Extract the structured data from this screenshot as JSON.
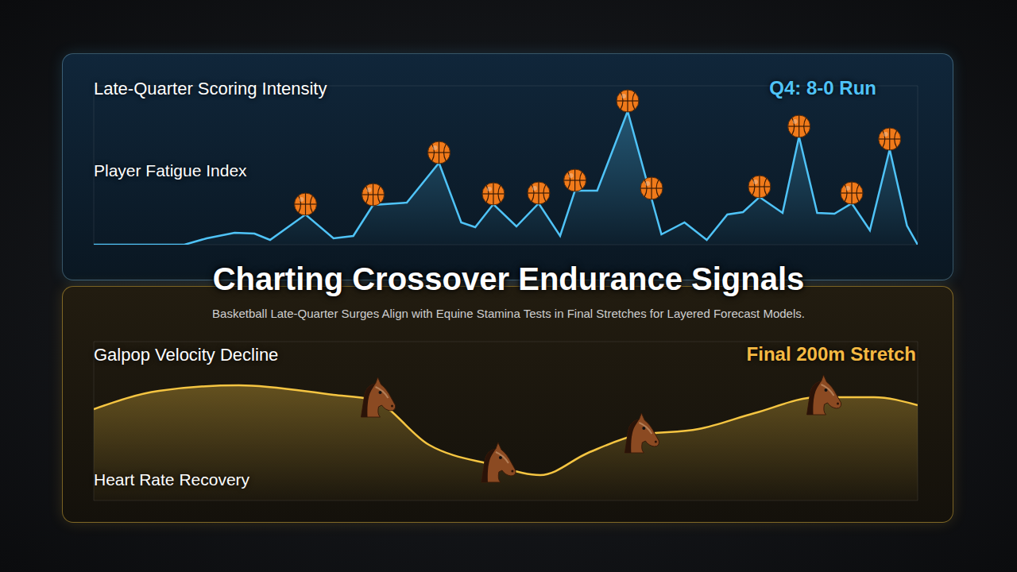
{
  "title": "Charting Crossover Endurance Signals",
  "subtitle": "Basketball Late-Quarter Surges Align with Equine Stamina Tests in Final Stretches for Layered Forecast Models.",
  "chart_data": [
    {
      "type": "area",
      "title": "Late-Quarter Scoring Intensity",
      "ylabel": "Player Fatigue Index",
      "annotation": "Q4: 8-0 Run",
      "x": [
        0,
        11,
        13.7,
        17.1,
        19.5,
        21.4,
        25.7,
        29.1,
        31.5,
        33.9,
        38,
        41.9,
        44.6,
        46.3,
        48.5,
        51.3,
        54,
        56.6,
        58.4,
        61.1,
        64.8,
        67.7,
        68.9,
        71.7,
        74.4,
        76.9,
        78.8,
        80.8,
        83.6,
        85.6,
        87.8,
        89.9,
        92,
        94.2,
        96.6,
        98.7,
        100
      ],
      "series": [
        {
          "type": "area",
          "color": "#4fc3f7",
          "line_style": "straight",
          "values": [
            0,
            0,
            0.4,
            0.75,
            0.7,
            0.3,
            1.9,
            0.4,
            0.55,
            2.5,
            2.65,
            5.15,
            1.4,
            1.1,
            2.55,
            1.15,
            2.6,
            0.55,
            3.4,
            3.4,
            8.4,
            2.9,
            0.65,
            1.4,
            0.3,
            1.9,
            2.05,
            3.0,
            2.0,
            6.8,
            2.0,
            1.95,
            2.6,
            0.9,
            6.0,
            1.2,
            0
          ]
        },
        {
          "type": "scatter",
          "marker": "basketball",
          "color": "#f07a1a",
          "values": [
            null,
            null,
            null,
            null,
            null,
            null,
            1.9,
            null,
            null,
            2.5,
            null,
            5.15,
            null,
            null,
            2.55,
            null,
            2.6,
            null,
            3.4,
            null,
            8.4,
            2.9,
            null,
            null,
            null,
            null,
            null,
            3.0,
            null,
            6.8,
            null,
            null,
            2.6,
            null,
            6.0,
            null,
            null
          ]
        }
      ],
      "xlim": [
        0,
        100
      ],
      "xticks": [
        0,
        10,
        20,
        30,
        40,
        50,
        60,
        70,
        80,
        90,
        100
      ],
      "ylim": [
        0,
        10
      ],
      "yticks": [
        0,
        2,
        4,
        6,
        8,
        10
      ],
      "grid": true,
      "tick_labels": false
    },
    {
      "type": "area",
      "title": "Galpop Velocity Decline",
      "ylabel": "Heart Rate Recovery",
      "annotation": "Final 200m Stretch",
      "x": [
        0,
        7.9,
        17.6,
        29.1,
        33.8,
        40.7,
        48.4,
        54.2,
        60,
        65.8,
        73.4,
        80.2,
        87.9,
        94.7,
        100
      ],
      "series": [
        {
          "type": "area",
          "color": "#f5c542",
          "line_style": "smooth",
          "values": [
            5.75,
            6.9,
            7.25,
            6.65,
            6.35,
            3.5,
            2.25,
            1.6,
            3.0,
            4.1,
            4.5,
            5.5,
            6.5,
            6.5,
            6.0
          ]
        },
        {
          "type": "scatter",
          "marker": "horse",
          "color": "#8b4a22",
          "values": [
            null,
            null,
            null,
            null,
            6.35,
            null,
            2.25,
            null,
            null,
            4.1,
            null,
            null,
            6.5,
            null,
            null
          ]
        }
      ],
      "xlim": [
        0,
        100
      ],
      "xticks": [
        0,
        10,
        20,
        30,
        40,
        50,
        60,
        70,
        80,
        90,
        100
      ],
      "ylim": [
        0,
        10
      ],
      "yticks": [
        0,
        2,
        4,
        6,
        8,
        10
      ],
      "grid": true,
      "tick_labels": false
    }
  ]
}
